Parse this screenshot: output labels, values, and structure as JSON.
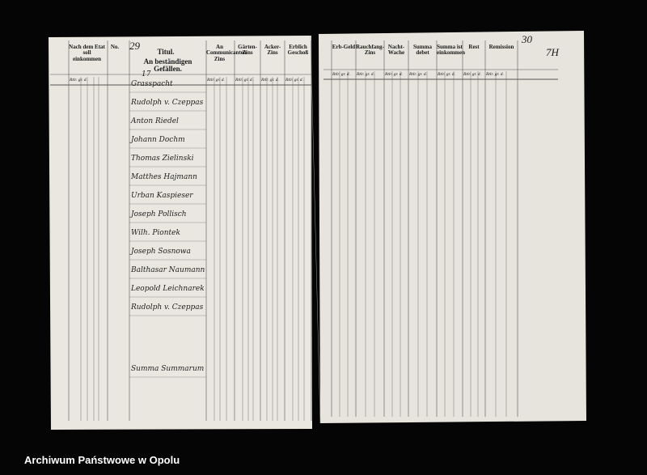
{
  "footer": {
    "archive": "Archiwum Państwowe w Opolu"
  },
  "left_page": {
    "page_number": "29",
    "title": "Titul.",
    "subtitle": "An beständigen Gefällen.",
    "number": "17",
    "columns": [
      "Nach dem Etat soll einkommen",
      "No.",
      "An Communicanten Zins",
      "Gärten-Zins",
      "Acker-Zins",
      "Erblich Geschoß"
    ],
    "units": "Rtlr. gr. d.",
    "entries": [
      "Grasspacht",
      "Rudolph v. Czeppas",
      "Anton Riedel",
      "Johann Dochm",
      "Thomas Zielinski",
      "Matthes Hajmann",
      "Urban Kaspieser",
      "Joseph Pollisch",
      "Wilh. Piontek",
      "Joseph Sosnowa",
      "Balthasar Naumann",
      "Leopold Leichnarek",
      "Rudolph v. Czeppas",
      "Summa Summarum"
    ]
  },
  "right_page": {
    "page_number": "30",
    "mark": "7H",
    "columns": [
      "Erb-Geld",
      "Rauchfang-Zins",
      "Nacht-Wache",
      "Summa debet",
      "Summa ist einkommen",
      "Rest",
      "Remission"
    ]
  }
}
